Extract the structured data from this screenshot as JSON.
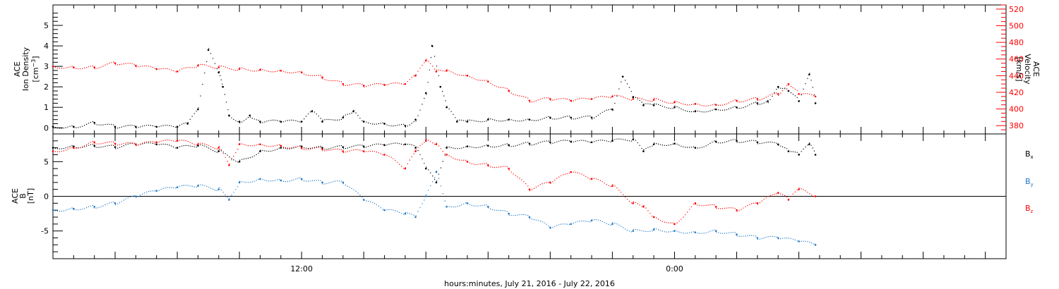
{
  "chart_data": [
    {
      "type": "scatter",
      "panel": "density-velocity",
      "x_range_hours": [
        0,
        46
      ],
      "y_left": {
        "label_lines": [
          "ACE",
          "Ion Density"
        ],
        "unit_base": "[cm",
        "unit_sup": "−3",
        "unit_end": "]",
        "range": [
          -0.3,
          6
        ],
        "ticks": [
          0,
          1,
          2,
          3,
          4,
          5
        ],
        "tick_labels": [
          "0",
          "1",
          "2",
          "3",
          "4",
          "5"
        ],
        "color": "#000000"
      },
      "y_right": {
        "label_lines": [
          "ACE",
          "Velocity",
          "[km/s]"
        ],
        "range": [
          370,
          525
        ],
        "ticks": [
          380,
          400,
          420,
          440,
          460,
          480,
          500,
          520
        ],
        "tick_labels": [
          "380",
          "400",
          "420",
          "440",
          "460",
          "480",
          "500",
          "520"
        ],
        "color": "#ff0000"
      },
      "series": [
        {
          "name_hidden": true,
          "color": "#000000",
          "axis": "left",
          "x": [
            0,
            1,
            2,
            3,
            4,
            5,
            6,
            6.5,
            7,
            7.5,
            8,
            8.2,
            8.5,
            9,
            9.5,
            10,
            11,
            12,
            12.5,
            13,
            14,
            14.5,
            15,
            16,
            17,
            17.5,
            18,
            18.3,
            18.7,
            19,
            19.5,
            20,
            21,
            22,
            23,
            24,
            25,
            26,
            27,
            27.5,
            28,
            28.5,
            29,
            30,
            31,
            32,
            33,
            34,
            34.5,
            35,
            35.5,
            36,
            36.5,
            36.8
          ],
          "y": [
            0.05,
            0.05,
            0.25,
            0.05,
            0.05,
            0.05,
            0.05,
            0.2,
            0.9,
            3.8,
            2.7,
            2.0,
            0.6,
            0.3,
            0.6,
            0.3,
            0.3,
            0.3,
            0.8,
            0.3,
            0.5,
            0.8,
            0.3,
            0.2,
            0.1,
            0.4,
            1.7,
            4.0,
            2.0,
            1.0,
            0.3,
            0.3,
            0.4,
            0.4,
            0.4,
            0.5,
            0.5,
            0.5,
            0.9,
            2.5,
            1.5,
            1.1,
            1.1,
            1.0,
            0.8,
            0.9,
            1.0,
            1.2,
            1.3,
            2.0,
            1.8,
            1.3,
            2.6,
            1.2
          ]
        },
        {
          "name_hidden": true,
          "color": "#ff0000",
          "axis": "right",
          "x": [
            0,
            1,
            2,
            3,
            4,
            5,
            6,
            7,
            8,
            9,
            10,
            11,
            12,
            13,
            14,
            15,
            16,
            17,
            17.5,
            18,
            18.5,
            19,
            20,
            21,
            22,
            23,
            24,
            25,
            26,
            27,
            28,
            29,
            30,
            31,
            32,
            33,
            34,
            35,
            35.5,
            36,
            36.8
          ],
          "y": [
            451,
            450,
            450,
            455,
            452,
            448,
            445,
            452,
            450,
            448,
            447,
            446,
            444,
            438,
            430,
            428,
            429,
            430,
            440,
            458,
            445,
            446,
            440,
            433,
            422,
            410,
            412,
            410,
            412,
            415,
            412,
            411,
            408,
            406,
            405,
            410,
            412,
            418,
            430,
            418,
            415
          ]
        }
      ]
    },
    {
      "type": "scatter",
      "panel": "magnetic-field",
      "x_range_hours": [
        0,
        46
      ],
      "y_left": {
        "label_lines": [
          "ACE",
          "B"
        ],
        "unit": "[nT]",
        "range": [
          -9,
          9
        ],
        "ticks": [
          -5,
          0,
          5
        ],
        "tick_labels": [
          "-5",
          "0",
          "5"
        ]
      },
      "zero_line": true,
      "legend_position": "right",
      "series": [
        {
          "name_base": "B",
          "name_sub": "x",
          "color": "#000000",
          "x": [
            0,
            1,
            2,
            3,
            4,
            5,
            6,
            7,
            8,
            9,
            10,
            11,
            12,
            13,
            14,
            15,
            16,
            17,
            17.5,
            18,
            18.5,
            19,
            20,
            21,
            22,
            23,
            24,
            25,
            26,
            27,
            28,
            28.5,
            29,
            30,
            31,
            32,
            33,
            34,
            35,
            35.5,
            36,
            36.5,
            36.8
          ],
          "y": [
            7.0,
            7.2,
            7.3,
            7.1,
            7.5,
            7.5,
            7.0,
            7.3,
            6.5,
            5.0,
            6.5,
            7.0,
            7.2,
            7.0,
            7.1,
            7.2,
            7.4,
            7.5,
            7.0,
            4.0,
            2.0,
            7.0,
            7.2,
            7.3,
            7.4,
            7.6,
            7.8,
            7.9,
            7.8,
            8.0,
            8.2,
            6.5,
            7.5,
            7.6,
            7.0,
            7.9,
            8.0,
            7.8,
            7.5,
            6.5,
            6.0,
            7.5,
            6.0
          ]
        },
        {
          "name_base": "B",
          "name_sub": "y",
          "color": "#1e78c8",
          "x": [
            0,
            1,
            2,
            3,
            4,
            5,
            6,
            7,
            8,
            8.5,
            9,
            10,
            11,
            12,
            13,
            14,
            15,
            16,
            17,
            17.5,
            18,
            18.5,
            19,
            20,
            21,
            22,
            23,
            24,
            25,
            26,
            27,
            28,
            29,
            30,
            31,
            32,
            33,
            34,
            35,
            36,
            36.8
          ],
          "y": [
            -2.0,
            -1.8,
            -1.5,
            -1.0,
            0.0,
            0.8,
            1.3,
            1.5,
            1.0,
            -0.5,
            2.0,
            2.5,
            2.3,
            2.5,
            2.0,
            2.0,
            -0.5,
            -2.0,
            -2.5,
            -3.0,
            0.0,
            3.5,
            -1.5,
            -1.0,
            -1.5,
            -2.5,
            -3.0,
            -4.5,
            -4.0,
            -3.5,
            -4.0,
            -5.0,
            -4.8,
            -5.0,
            -5.2,
            -5.0,
            -5.5,
            -6.0,
            -6.0,
            -6.5,
            -7.0
          ]
        },
        {
          "name_base": "B",
          "name_sub": "z",
          "color": "#ff0000",
          "x": [
            0,
            1,
            2,
            3,
            4,
            5,
            6,
            7,
            8,
            8.5,
            9,
            10,
            11,
            12,
            13,
            14,
            15,
            16,
            17,
            17.5,
            18,
            18.5,
            19,
            20,
            21,
            22,
            23,
            24,
            25,
            26,
            27,
            28,
            28.5,
            29,
            30,
            31,
            32,
            33,
            34,
            35,
            35.5,
            36,
            36.8
          ],
          "y": [
            6.5,
            7.0,
            7.8,
            7.6,
            7.5,
            7.8,
            8.0,
            7.5,
            7.0,
            4.5,
            7.5,
            7.5,
            7.3,
            7.0,
            6.8,
            6.5,
            6.5,
            6.0,
            4.0,
            6.5,
            8.0,
            7.5,
            6.0,
            5.0,
            4.5,
            4.0,
            1.0,
            2.0,
            3.5,
            2.5,
            1.5,
            -1.0,
            -1.5,
            -3.0,
            -4.0,
            -1.0,
            -1.5,
            -2.0,
            -1.0,
            0.5,
            -0.5,
            1.0,
            0.0
          ]
        }
      ]
    }
  ],
  "x_axis": {
    "tick_labels": [
      {
        "hour": 12,
        "label": "12:00"
      },
      {
        "hour": 30,
        "label": "0:00"
      }
    ],
    "minor_tick_every_hours": 1,
    "major_tick_every_hours": 3,
    "title": "hours:minutes, July 21, 2016 - July 22, 2016"
  }
}
